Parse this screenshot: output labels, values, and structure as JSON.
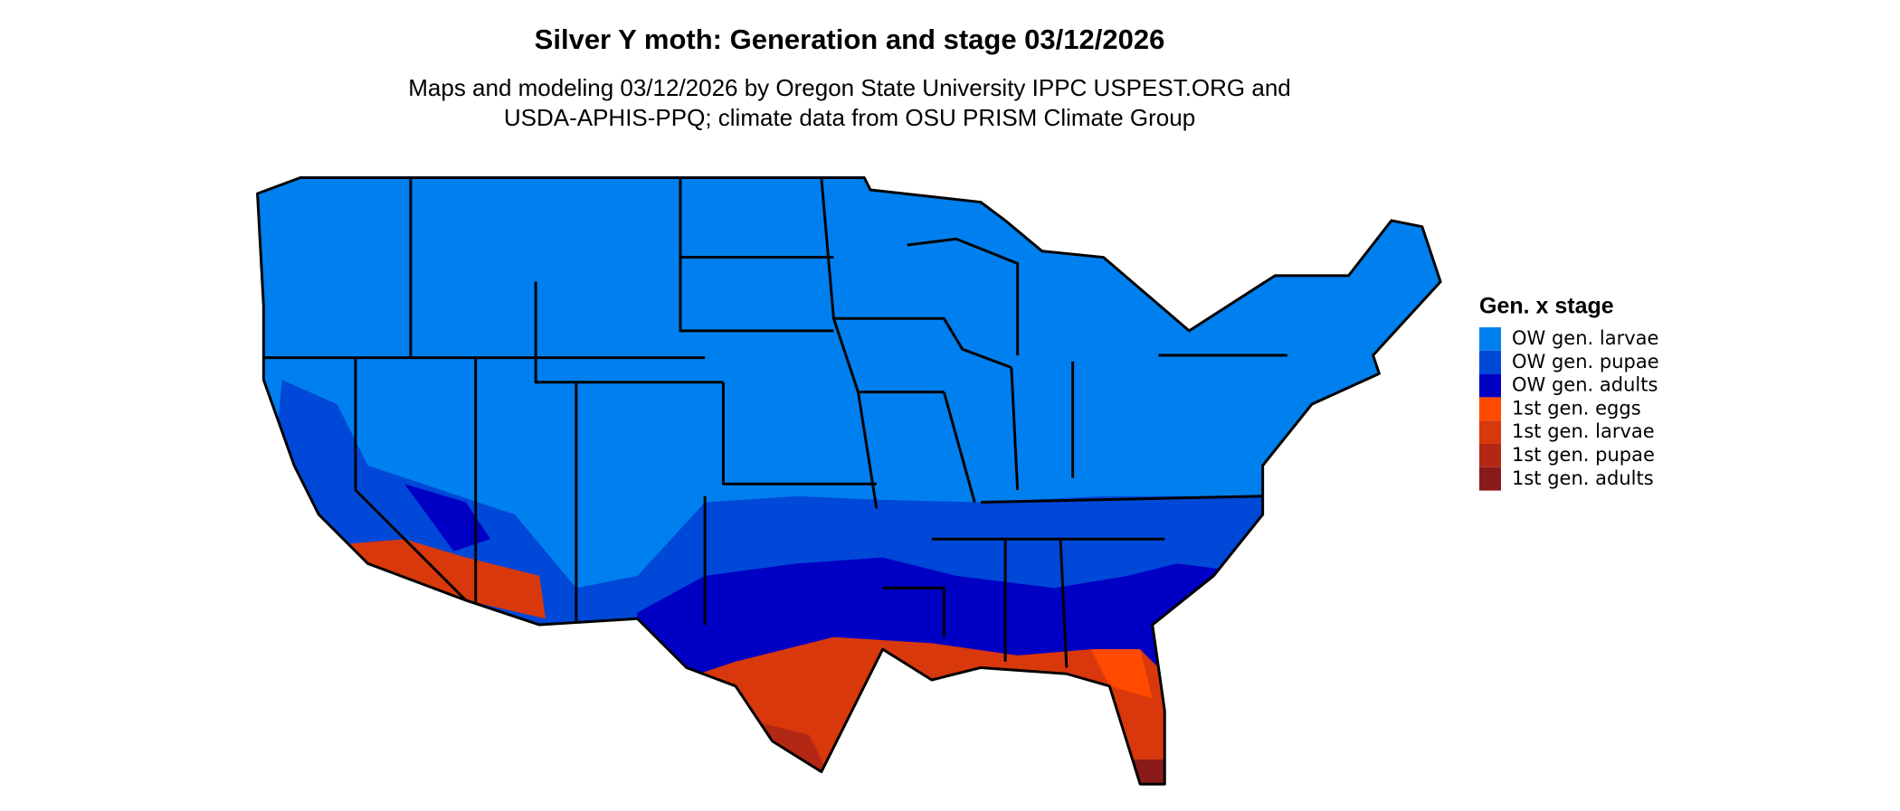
{
  "title": "Silver Y moth: Generation and stage 03/12/2026",
  "subtitle": [
    "Maps and modeling 03/12/2026 by Oregon State University IPPC USPEST.ORG and",
    "USDA-APHIS-PPQ; climate data from OSU PRISM Climate Group"
  ],
  "legend": {
    "title": "Gen. x stage",
    "items": [
      {
        "label": "OW gen. larvae",
        "color": "#0080ee"
      },
      {
        "label": "OW gen. pupae",
        "color": "#0048d8"
      },
      {
        "label": "OW gen. adults",
        "color": "#0000c4"
      },
      {
        "label": "1st gen. eggs",
        "color": "#ff4a00"
      },
      {
        "label": "1st gen. larvae",
        "color": "#d8380c"
      },
      {
        "label": "1st gen. pupae",
        "color": "#b32814"
      },
      {
        "label": "1st gen. adults",
        "color": "#8a1a1a"
      }
    ]
  }
}
